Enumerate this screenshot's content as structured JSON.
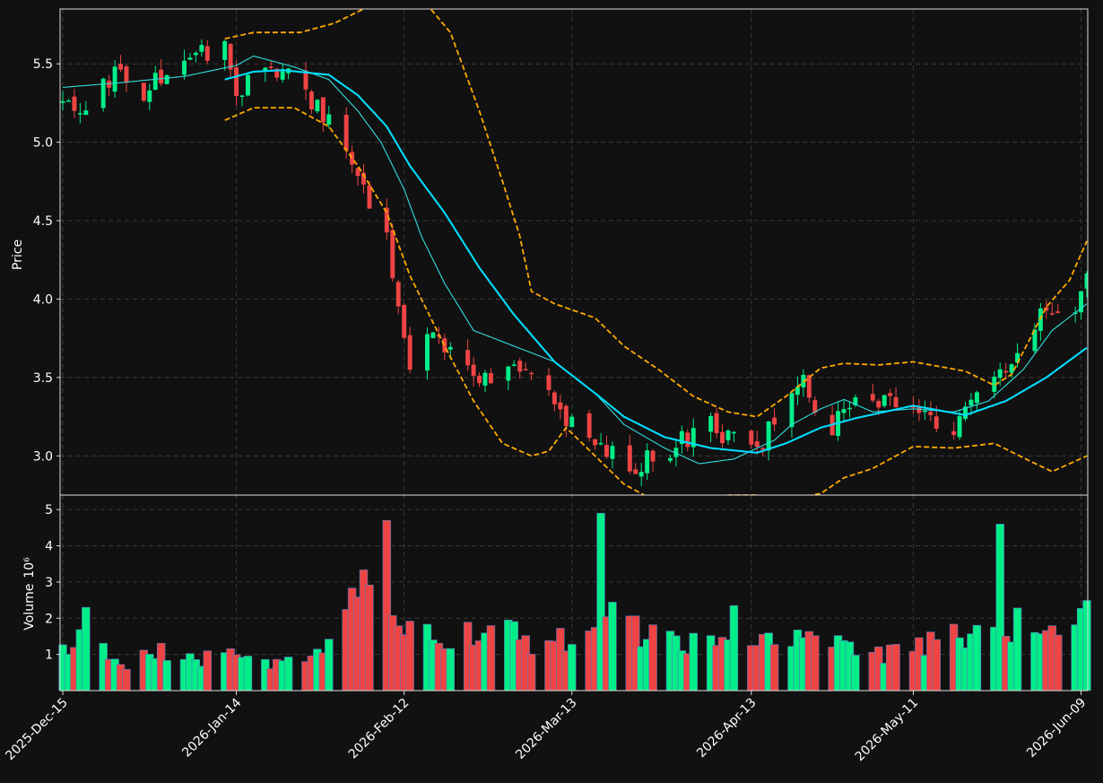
{
  "chart_data": {
    "type": "candlestick",
    "price_axis": {
      "label": "Price",
      "ylim": [
        2.75,
        5.85
      ],
      "ticks": [
        3.0,
        3.5,
        4.0,
        4.5,
        5.0,
        5.5
      ],
      "tick_labels": [
        "3.0",
        "3.5",
        "4.0",
        "4.5",
        "5.0",
        "5.5"
      ]
    },
    "volume_axis": {
      "label": "Volume",
      "exponent_label": "10⁶",
      "ylim": [
        0.0,
        5.4
      ],
      "ticks": [
        1,
        2,
        3,
        4,
        5
      ],
      "tick_labels": [
        "1",
        "2",
        "3",
        "4",
        "5"
      ]
    },
    "x_axis": {
      "start": "2025-12-15",
      "end": "2026-06-10",
      "ticks": [
        "2025-12-15",
        "2026-01-14",
        "2026-02-12",
        "2026-03-13",
        "2026-04-13",
        "2026-05-11",
        "2026-06-09"
      ],
      "tick_labels": [
        "2025-Dec-15",
        "2026-Jan-14",
        "2026-Feb-12",
        "2026-Mar-13",
        "2026-Apr-13",
        "2026-May-11",
        "2026-Jun-09"
      ]
    },
    "grid": true,
    "colors": {
      "background": "#111111",
      "up": "#00ee88",
      "down": "#ee4444",
      "volume_edge": "#5577bb",
      "sma_fast": "#33dddd",
      "sma_slow": "#00ddff",
      "bollinger": "#ffaa00",
      "grid": "#3a3a3a",
      "frame": "#dddddd",
      "text": "#ffffff"
    },
    "series": [
      {
        "kind": "sma_fast",
        "anchors": [
          [
            "2025-12-15",
            5.35
          ],
          [
            "2025-12-25",
            5.38
          ],
          [
            "2026-01-05",
            5.42
          ],
          [
            "2026-01-14",
            5.49
          ],
          [
            "2026-01-17",
            5.55
          ],
          [
            "2026-01-20",
            5.52
          ],
          [
            "2026-01-24",
            5.48
          ],
          [
            "2026-01-30",
            5.4
          ],
          [
            "2026-02-04",
            5.2
          ],
          [
            "2026-02-08",
            5.0
          ],
          [
            "2026-02-12",
            4.7
          ],
          [
            "2026-02-15",
            4.4
          ],
          [
            "2026-02-19",
            4.1
          ],
          [
            "2026-02-24",
            3.8
          ],
          [
            "2026-03-03",
            3.7
          ],
          [
            "2026-03-10",
            3.6
          ],
          [
            "2026-03-17",
            3.4
          ],
          [
            "2026-03-22",
            3.2
          ],
          [
            "2026-03-29",
            3.05
          ],
          [
            "2026-04-04",
            2.95
          ],
          [
            "2026-04-10",
            2.98
          ],
          [
            "2026-04-14",
            3.05
          ],
          [
            "2026-04-17",
            3.1
          ],
          [
            "2026-04-20",
            3.2
          ],
          [
            "2026-04-25",
            3.3
          ],
          [
            "2026-04-29",
            3.36
          ],
          [
            "2026-05-04",
            3.28
          ],
          [
            "2026-05-11",
            3.3
          ],
          [
            "2026-05-18",
            3.28
          ],
          [
            "2026-05-24",
            3.35
          ],
          [
            "2026-05-30",
            3.55
          ],
          [
            "2026-06-04",
            3.8
          ],
          [
            "2026-06-10",
            3.97
          ]
        ]
      },
      {
        "kind": "sma_slow",
        "anchors": [
          [
            "2026-01-12",
            5.4
          ],
          [
            "2026-01-17",
            5.45
          ],
          [
            "2026-01-22",
            5.46
          ],
          [
            "2026-01-30",
            5.43
          ],
          [
            "2026-02-04",
            5.3
          ],
          [
            "2026-02-09",
            5.1
          ],
          [
            "2026-02-13",
            4.85
          ],
          [
            "2026-02-19",
            4.55
          ],
          [
            "2026-02-25",
            4.2
          ],
          [
            "2026-03-03",
            3.9
          ],
          [
            "2026-03-10",
            3.6
          ],
          [
            "2026-03-17",
            3.4
          ],
          [
            "2026-03-22",
            3.25
          ],
          [
            "2026-03-29",
            3.12
          ],
          [
            "2026-04-06",
            3.05
          ],
          [
            "2026-04-14",
            3.02
          ],
          [
            "2026-04-19",
            3.08
          ],
          [
            "2026-04-25",
            3.18
          ],
          [
            "2026-05-01",
            3.24
          ],
          [
            "2026-05-06",
            3.28
          ],
          [
            "2026-05-11",
            3.32
          ],
          [
            "2026-05-20",
            3.26
          ],
          [
            "2026-05-27",
            3.35
          ],
          [
            "2026-06-03",
            3.5
          ],
          [
            "2026-06-10",
            3.69
          ]
        ]
      },
      {
        "kind": "bollinger_upper",
        "anchors": [
          [
            "2026-01-12",
            5.66
          ],
          [
            "2026-01-17",
            5.7
          ],
          [
            "2026-01-25",
            5.7
          ],
          [
            "2026-01-31",
            5.76
          ],
          [
            "2026-02-05",
            5.85
          ],
          [
            "2026-02-15",
            5.92
          ],
          [
            "2026-02-20",
            5.7
          ],
          [
            "2026-02-25",
            5.2
          ],
          [
            "2026-03-01",
            4.75
          ],
          [
            "2026-03-04",
            4.4
          ],
          [
            "2026-03-06",
            4.05
          ],
          [
            "2026-03-10",
            3.97
          ],
          [
            "2026-03-17",
            3.88
          ],
          [
            "2026-03-22",
            3.7
          ],
          [
            "2026-03-28",
            3.55
          ],
          [
            "2026-04-03",
            3.38
          ],
          [
            "2026-04-09",
            3.28
          ],
          [
            "2026-04-14",
            3.25
          ],
          [
            "2026-04-19",
            3.38
          ],
          [
            "2026-04-25",
            3.56
          ],
          [
            "2026-04-29",
            3.59
          ],
          [
            "2026-05-05",
            3.58
          ],
          [
            "2026-05-11",
            3.6
          ],
          [
            "2026-05-20",
            3.54
          ],
          [
            "2026-05-25",
            3.45
          ],
          [
            "2026-05-28",
            3.52
          ],
          [
            "2026-06-03",
            3.95
          ],
          [
            "2026-06-07",
            4.12
          ],
          [
            "2026-06-10",
            4.37
          ]
        ]
      },
      {
        "kind": "bollinger_lower",
        "anchors": [
          [
            "2026-01-12",
            5.14
          ],
          [
            "2026-01-17",
            5.22
          ],
          [
            "2026-01-24",
            5.22
          ],
          [
            "2026-01-30",
            5.1
          ],
          [
            "2026-02-04",
            4.85
          ],
          [
            "2026-02-09",
            4.55
          ],
          [
            "2026-02-13",
            4.15
          ],
          [
            "2026-02-19",
            3.7
          ],
          [
            "2026-02-24",
            3.35
          ],
          [
            "2026-03-01",
            3.08
          ],
          [
            "2026-03-06",
            3.0
          ],
          [
            "2026-03-09",
            3.03
          ],
          [
            "2026-03-12",
            3.18
          ],
          [
            "2026-03-17",
            3.0
          ],
          [
            "2026-03-22",
            2.82
          ],
          [
            "2026-03-28",
            2.7
          ],
          [
            "2026-04-04",
            2.7
          ],
          [
            "2026-04-09",
            2.75
          ],
          [
            "2026-04-14",
            2.75
          ],
          [
            "2026-04-19",
            2.72
          ],
          [
            "2026-04-25",
            2.76
          ],
          [
            "2026-04-29",
            2.86
          ],
          [
            "2026-05-04",
            2.92
          ],
          [
            "2026-05-11",
            3.06
          ],
          [
            "2026-05-18",
            3.05
          ],
          [
            "2026-05-25",
            3.08
          ],
          [
            "2026-05-31",
            2.97
          ],
          [
            "2026-06-04",
            2.9
          ],
          [
            "2026-06-10",
            3.0
          ]
        ]
      },
      {
        "kind": "close_path",
        "anchors": [
          [
            "2025-12-15",
            5.25
          ],
          [
            "2025-12-20",
            5.2
          ],
          [
            "2025-12-24",
            5.48
          ],
          [
            "2025-12-28",
            5.3
          ],
          [
            "2026-01-03",
            5.5
          ],
          [
            "2026-01-07",
            5.58
          ],
          [
            "2026-01-12",
            5.6
          ],
          [
            "2026-01-14",
            5.3
          ],
          [
            "2026-01-18",
            5.5
          ],
          [
            "2026-01-24",
            5.4
          ],
          [
            "2026-01-30",
            5.15
          ],
          [
            "2026-02-04",
            4.8
          ],
          [
            "2026-02-09",
            4.4
          ],
          [
            "2026-02-13",
            3.6
          ],
          [
            "2026-02-17",
            3.8
          ],
          [
            "2026-02-23",
            3.55
          ],
          [
            "2026-02-27",
            3.5
          ],
          [
            "2026-03-03",
            3.55
          ],
          [
            "2026-03-08",
            3.4
          ],
          [
            "2026-03-13",
            3.2
          ],
          [
            "2026-03-18",
            3.05
          ],
          [
            "2026-03-23",
            2.92
          ],
          [
            "2026-03-28",
            3.0
          ],
          [
            "2026-04-01",
            3.1
          ],
          [
            "2026-04-06",
            3.2
          ],
          [
            "2026-04-10",
            3.1
          ],
          [
            "2026-04-14",
            3.0
          ],
          [
            "2026-04-18",
            3.3
          ],
          [
            "2026-04-22",
            3.5
          ],
          [
            "2026-04-26",
            3.15
          ],
          [
            "2026-04-30",
            3.3
          ],
          [
            "2026-05-04",
            3.4
          ],
          [
            "2026-05-08",
            3.3
          ],
          [
            "2026-05-13",
            3.25
          ],
          [
            "2026-05-18",
            3.2
          ],
          [
            "2026-05-22",
            3.35
          ],
          [
            "2026-05-27",
            3.55
          ],
          [
            "2026-05-31",
            3.85
          ],
          [
            "2026-06-04",
            3.95
          ],
          [
            "2026-06-07",
            3.85
          ],
          [
            "2026-06-10",
            4.2
          ]
        ]
      },
      {
        "kind": "volume_path",
        "anchors": [
          [
            "2025-12-15",
            1.1
          ],
          [
            "2025-12-20",
            1.6
          ],
          [
            "2025-12-25",
            0.6
          ],
          [
            "2026-01-01",
            1.1
          ],
          [
            "2026-01-08",
            0.8
          ],
          [
            "2026-01-14",
            1.1
          ],
          [
            "2026-01-20",
            0.6
          ],
          [
            "2026-01-26",
            1.0
          ],
          [
            "2026-02-01",
            1.8
          ],
          [
            "2026-02-07",
            3.2
          ],
          [
            "2026-02-12",
            2.2
          ],
          [
            "2026-02-18",
            1.4
          ],
          [
            "2026-02-24",
            1.7
          ],
          [
            "2026-03-02",
            1.6
          ],
          [
            "2026-03-08",
            1.2
          ],
          [
            "2026-03-14",
            1.5
          ],
          [
            "2026-03-19",
            2.4
          ],
          [
            "2026-03-25",
            1.6
          ],
          [
            "2026-03-31",
            1.4
          ],
          [
            "2026-04-06",
            1.3
          ],
          [
            "2026-04-13",
            1.4
          ],
          [
            "2026-04-19",
            1.3
          ],
          [
            "2026-04-24",
            1.8
          ],
          [
            "2026-04-29",
            1.2
          ],
          [
            "2026-05-05",
            1.0
          ],
          [
            "2026-05-11",
            1.1
          ],
          [
            "2026-05-17",
            1.4
          ],
          [
            "2026-05-23",
            1.6
          ],
          [
            "2026-05-29",
            1.8
          ],
          [
            "2026-06-04",
            1.6
          ],
          [
            "2026-06-10",
            2.0
          ]
        ]
      },
      {
        "kind": "volume_spikes",
        "points": [
          [
            "2026-02-09",
            4.7
          ],
          [
            "2026-03-18",
            4.9
          ],
          [
            "2026-05-26",
            4.6
          ],
          [
            "2026-04-10",
            2.35
          ],
          [
            "2026-04-25",
            2.9
          ],
          [
            "2025-12-19",
            2.3
          ],
          [
            "2026-01-31",
            2.6
          ]
        ]
      }
    ]
  }
}
